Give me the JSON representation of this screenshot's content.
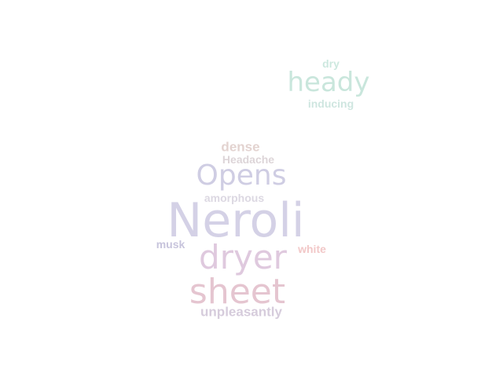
{
  "wordcloud": {
    "words": [
      {
        "id": "neroli",
        "text": "Neroli",
        "color": "#d4d1e6"
      },
      {
        "id": "sheet",
        "text": "sheet",
        "color": "#e5c5d0"
      },
      {
        "id": "dryer",
        "text": "dryer",
        "color": "#dfc9de"
      },
      {
        "id": "opens",
        "text": "Opens",
        "color": "#cfcde3"
      },
      {
        "id": "heady",
        "text": "heady",
        "color": "#c9e6dc"
      },
      {
        "id": "dense",
        "text": "dense",
        "color": "#e3d3d0"
      },
      {
        "id": "headache",
        "text": "Headache",
        "color": "#ddd5d8"
      },
      {
        "id": "amorphous",
        "text": "amorphous",
        "color": "#dcd8e2"
      },
      {
        "id": "musk",
        "text": "musk",
        "color": "#c7c4dc"
      },
      {
        "id": "white",
        "text": "white",
        "color": "#f2c8c8"
      },
      {
        "id": "unpleasantly",
        "text": "unpleasantly",
        "color": "#d6ccdc"
      },
      {
        "id": "dry",
        "text": "dry",
        "color": "#cde8df"
      },
      {
        "id": "inducing",
        "text": "inducing",
        "color": "#cfe6e0"
      }
    ]
  }
}
